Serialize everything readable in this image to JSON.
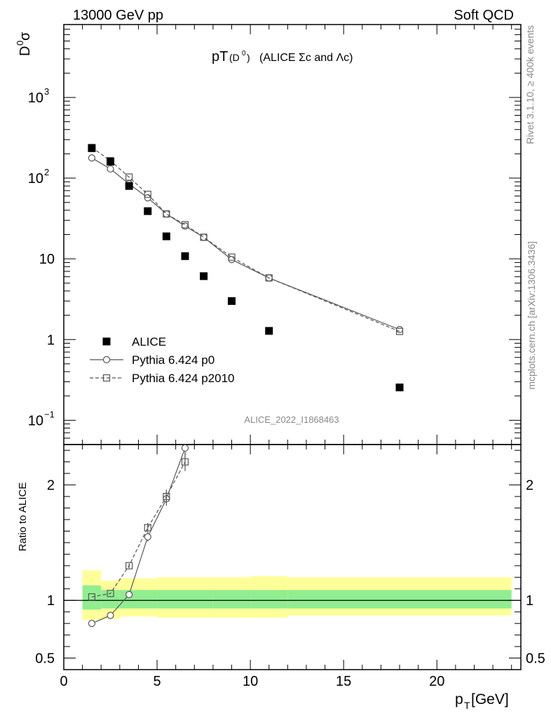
{
  "header": {
    "left": "13000 GeV pp",
    "right": "Soft QCD"
  },
  "title": {
    "main": "pT",
    "d_label": "(D",
    "d_sup": "0",
    "d_close": ")",
    "suffix": "(ALICE Σc and Λc)"
  },
  "ylabel_top": {
    "base": "D",
    "sup": "0",
    "tail": " σ"
  },
  "ylabel_bottom": "Ratio to ALICE",
  "xlabel": {
    "base": "p",
    "sub": "T",
    "tail": " [GeV]"
  },
  "side_text": {
    "rivet": "Rivet 3.1.10, ≥ 400k events",
    "mcplots": "mcplots.cern.ch [arXiv:1306.3436]"
  },
  "watermark": "ALICE_2022_I1868463",
  "colors": {
    "band_inner": "#90ee90",
    "band_outer": "#ffff99",
    "series_line": "#555555",
    "data_marker": "#000000"
  },
  "chart_data": [
    {
      "type": "scatter",
      "panel": "main",
      "yscale": "log",
      "ylim": [
        0.05,
        8000
      ],
      "xlim": [
        0,
        24.5
      ],
      "yticks": [
        {
          "value": 0.1,
          "base": "10",
          "exp": "−1"
        },
        {
          "value": 1,
          "base": "1",
          "exp": ""
        },
        {
          "value": 10,
          "base": "10",
          "exp": ""
        },
        {
          "value": 100,
          "base": "10",
          "exp": "2"
        },
        {
          "value": 1000,
          "base": "10",
          "exp": "3"
        }
      ],
      "legend_position": "bottom-left",
      "series": [
        {
          "name": "ALICE",
          "marker": "filled-square",
          "x": [
            1.5,
            2.5,
            3.5,
            4.5,
            5.5,
            6.5,
            7.5,
            9,
            11,
            18
          ],
          "y": [
            235,
            160,
            80,
            39,
            19,
            10.8,
            6.1,
            3.0,
            1.28,
            0.255
          ]
        },
        {
          "name": "Pythia 6.424 p0",
          "marker": "open-circle",
          "line": "solid",
          "x": [
            1.5,
            2.5,
            3.5,
            4.5,
            5.5,
            6.5,
            7.5,
            9,
            11,
            18
          ],
          "y": [
            178,
            130,
            85,
            57,
            36,
            25.5,
            18.5,
            9.8,
            5.8,
            1.33
          ]
        },
        {
          "name": "Pythia 6.424 p2010",
          "marker": "open-square",
          "line": "dashed",
          "x": [
            1.5,
            2.5,
            3.5,
            4.5,
            5.5,
            6.5,
            7.5,
            9,
            11,
            18
          ],
          "y": [
            240,
            165,
            103,
            63,
            36,
            26.5,
            18.5,
            10.5,
            5.8,
            1.26
          ]
        }
      ]
    },
    {
      "type": "line",
      "panel": "ratio",
      "ylim": [
        0.4,
        2.35
      ],
      "xlim": [
        0,
        24.5
      ],
      "xticks": [
        0,
        5,
        10,
        15,
        20
      ],
      "yticks": [
        0.5,
        1,
        2
      ],
      "reference_line": 1,
      "band_bins": [
        {
          "x0": 1,
          "x1": 2,
          "inner": [
            0.92,
            1.13
          ],
          "outer": [
            0.83,
            1.26
          ]
        },
        {
          "x0": 2,
          "x1": 3,
          "inner": [
            0.93,
            1.09
          ],
          "outer": [
            0.84,
            1.17
          ]
        },
        {
          "x0": 3,
          "x1": 5,
          "inner": [
            0.93,
            1.09
          ],
          "outer": [
            0.86,
            1.19
          ]
        },
        {
          "x0": 5,
          "x1": 8,
          "inner": [
            0.93,
            1.09
          ],
          "outer": [
            0.85,
            1.2
          ]
        },
        {
          "x0": 8,
          "x1": 10,
          "inner": [
            0.93,
            1.09
          ],
          "outer": [
            0.85,
            1.2
          ]
        },
        {
          "x0": 10,
          "x1": 12,
          "inner": [
            0.93,
            1.09
          ],
          "outer": [
            0.85,
            1.21
          ]
        },
        {
          "x0": 12,
          "x1": 24,
          "inner": [
            0.93,
            1.09
          ],
          "outer": [
            0.87,
            1.2
          ]
        }
      ],
      "series": [
        {
          "name": "Pythia 6.424 p0",
          "marker": "open-circle",
          "line": "solid",
          "x": [
            1.5,
            2.5,
            3.5,
            4.5,
            5.5,
            6.5
          ],
          "y": [
            0.8,
            0.87,
            1.05,
            1.55,
            1.88,
            2.32
          ],
          "err": [
            0.0,
            0.0,
            0.02,
            0.04,
            0.06,
            0.08
          ]
        },
        {
          "name": "Pythia 6.424 p2010",
          "marker": "open-square",
          "line": "dashed",
          "x": [
            1.5,
            2.5,
            3.5,
            4.5,
            5.5,
            6.5
          ],
          "y": [
            1.03,
            1.06,
            1.3,
            1.63,
            1.9,
            2.2
          ],
          "err": [
            0.0,
            0.0,
            0.02,
            0.04,
            0.06,
            0.08
          ]
        }
      ]
    }
  ]
}
